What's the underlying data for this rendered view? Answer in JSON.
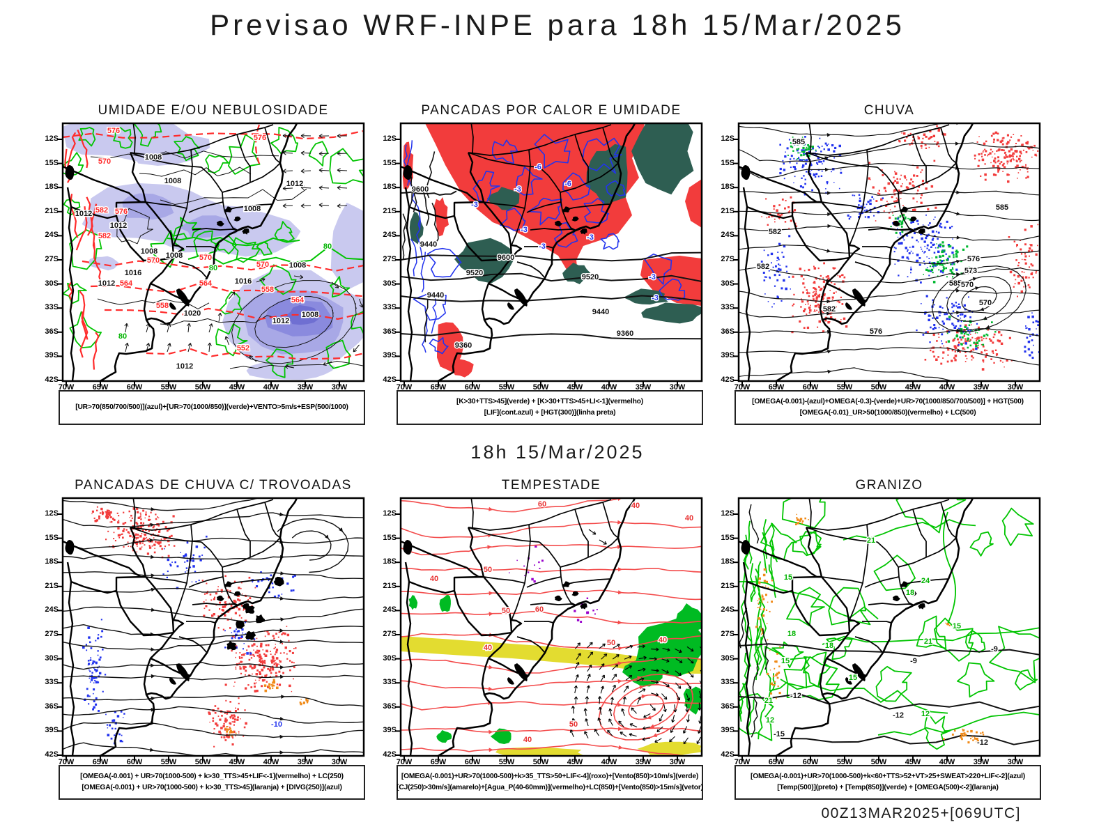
{
  "page": {
    "title": "Previsao WRF-INPE  para 18h 15/Mar/2025",
    "subtitle": "18h 15/Mar/2025",
    "footer": "00Z13MAR2025+[069UTC]"
  },
  "axes": {
    "lat": [
      "12S",
      "15S",
      "18S",
      "21S",
      "24S",
      "27S",
      "30S",
      "33S",
      "36S",
      "39S",
      "42S"
    ],
    "lon": [
      "70W",
      "65W",
      "60W",
      "55W",
      "50W",
      "45W",
      "40W",
      "35W",
      "30W"
    ]
  },
  "colors": {
    "red_fill": "#f23c3c",
    "red_line": "#ff2b2b",
    "salmon_line": "#f34b4b",
    "teal": "#2e5e52",
    "green": "#00c400",
    "green_fill": "#00bb22",
    "blue": "#2233ee",
    "lavender": "#c9c9ef",
    "lavender_mid": "#a8a8e6",
    "lavender_deep": "#8a8ade",
    "lavender_core": "#6f6fd2",
    "yellow": "#e3dc30",
    "orange": "#f08a18",
    "purple": "#9900cc",
    "black": "#000000"
  },
  "panels": [
    {
      "id": "umidade",
      "style": "umidade",
      "title": "UMIDADE E/OU NEBULOSIDADE",
      "legend": [
        "[UR>70(850/700/500)](azul)+[UR>70(1000/850)](verde)+VENTO>5m/s+ESP(500/1000)"
      ],
      "labels": [
        [
          "1008",
          "#111",
          130,
          52
        ],
        [
          "1008",
          "#111",
          158,
          86
        ],
        [
          "1012",
          "#111",
          333,
          90
        ],
        [
          "1008",
          "#111",
          272,
          126
        ],
        [
          "1012",
          "#111",
          80,
          150
        ],
        [
          "1008",
          "#111",
          124,
          187
        ],
        [
          "1008",
          "#111",
          160,
          193
        ],
        [
          "1016",
          "#111",
          101,
          218
        ],
        [
          "1012",
          "#111",
          63,
          233
        ],
        [
          "1016",
          "#111",
          259,
          230
        ],
        [
          "1020",
          "#111",
          186,
          276
        ],
        [
          "1008",
          "#111",
          337,
          207
        ],
        [
          "1012",
          "#111",
          313,
          287
        ],
        [
          "1008",
          "#111",
          355,
          278
        ],
        [
          "1012",
          "#111",
          30,
          133
        ],
        [
          "1012",
          "#111",
          175,
          352
        ],
        [
          "576",
          "#ff2b2b",
          73,
          14
        ],
        [
          "576",
          "#ff2b2b",
          283,
          24
        ],
        [
          "570",
          "#ff2b2b",
          60,
          58
        ],
        [
          "582",
          "#ff2b2b",
          56,
          128
        ],
        [
          "576",
          "#ff2b2b",
          84,
          130
        ],
        [
          "582",
          "#ff2b2b",
          60,
          165
        ],
        [
          "570",
          "#ff2b2b",
          130,
          200
        ],
        [
          "570",
          "#ff2b2b",
          205,
          196
        ],
        [
          "570",
          "#ff2b2b",
          287,
          206
        ],
        [
          "564",
          "#ff2b2b",
          91,
          233
        ],
        [
          "564",
          "#ff2b2b",
          205,
          233
        ],
        [
          "564",
          "#ff2b2b",
          337,
          257
        ],
        [
          "558",
          "#ff2b2b",
          143,
          265
        ],
        [
          "558",
          "#ff2b2b",
          294,
          242
        ],
        [
          "552",
          "#ff2b2b",
          259,
          326
        ],
        [
          "80",
          "#00b400",
          216,
          211
        ],
        [
          "80",
          "#00b400",
          86,
          309
        ],
        [
          "80",
          "#00b400",
          380,
          180
        ]
      ]
    },
    {
      "id": "pancadas-calor",
      "style": "pancadas",
      "title": "PANCADAS POR CALOR E UMIDADE",
      "legend": [
        "[K>30+TTS>45](verde) + [K>30+TTS>45+LI<-1](vermelho)",
        "[LIF](cont.azul) + [HGT(300)](linha preta)"
      ],
      "labels": [
        [
          "9600",
          "#111",
          28,
          98
        ],
        [
          "9440",
          "#111",
          40,
          177
        ],
        [
          "9600",
          "#111",
          151,
          196
        ],
        [
          "9520",
          "#111",
          106,
          218
        ],
        [
          "9520",
          "#111",
          272,
          224
        ],
        [
          "9440",
          "#111",
          50,
          250
        ],
        [
          "9440",
          "#111",
          287,
          274
        ],
        [
          "9360",
          "#111",
          90,
          322
        ],
        [
          "9360",
          "#111",
          322,
          305
        ],
        [
          "-6",
          "#2233ee",
          197,
          66
        ],
        [
          "-3",
          "#2233ee",
          168,
          98
        ],
        [
          "-3",
          "#2233ee",
          106,
          120
        ],
        [
          "-3",
          "#2233ee",
          177,
          156
        ],
        [
          "-3",
          "#2233ee",
          203,
          180
        ],
        [
          "-3",
          "#2233ee",
          272,
          167
        ],
        [
          "-3",
          "#2233ee",
          361,
          224
        ],
        [
          "-3",
          "#2233ee",
          365,
          254
        ],
        [
          "-6",
          "#2233ee",
          240,
          90
        ]
      ]
    },
    {
      "id": "chuva",
      "style": "chuva",
      "title": "CHUVA",
      "legend": [
        "[OMEGA(-0.001)-(azul)+OMEGA(-0.3)-(verde)+UR>70(1000/850/700/500)] + HGT(500)",
        "[OMEGA(-0.01)_UR>50(1000/850)(vermelho) + LC(500)"
      ],
      "labels": [
        [
          "585",
          "#111",
          86,
          30
        ],
        [
          "585",
          "#111",
          378,
          124
        ],
        [
          "585",
          "#111",
          311,
          233
        ],
        [
          "582",
          "#111",
          52,
          159
        ],
        [
          "582",
          "#111",
          35,
          209
        ],
        [
          "582",
          "#111",
          130,
          270
        ],
        [
          "576",
          "#111",
          337,
          198
        ],
        [
          "573",
          "#111",
          333,
          215
        ],
        [
          "570",
          "#111",
          328,
          235
        ],
        [
          "576",
          "#111",
          197,
          302
        ],
        [
          "570",
          "#111",
          354,
          261
        ]
      ]
    },
    {
      "id": "trovoadas",
      "style": "trovoadas",
      "title": "PANCADAS DE CHUVA C/ TROVOADAS",
      "legend": [
        "[OMEGA(-0.001) + UR>70(1000-500) + k>30_TTS>45+LIF<-1](vermelho) + LC(250)",
        "[OMEGA(-0.001) + UR>70(1000-500) + k>30_TTS>45](laranja) + [DIVG(250)](azul)"
      ],
      "labels": [
        [
          "-10",
          "#2233ee",
          307,
          328
        ]
      ]
    },
    {
      "id": "tempestade",
      "style": "tempestade",
      "title": "TEMPESTADE",
      "legend": [
        "[OMEGA(-0.001)+UR>70(1000-500)+k>35_TTS>50+LIF<-4](roxo)+[Vento(850)>10m/s](verde)",
        "[CJ(250)>30m/s](amarelo)+[Agua_P(40-60mm)](vermelho)+LC(850)+[Vento(850)>15m/s](vetor)"
      ],
      "labels": [
        [
          "60",
          "#e83030",
          203,
          12
        ],
        [
          "40",
          "#e83030",
          337,
          14
        ],
        [
          "40",
          "#e83030",
          414,
          32
        ],
        [
          "50",
          "#e83030",
          125,
          106
        ],
        [
          "40",
          "#e83030",
          48,
          119
        ],
        [
          "50",
          "#e83030",
          151,
          165
        ],
        [
          "60",
          "#e83030",
          199,
          163
        ],
        [
          "40",
          "#e83030",
          125,
          218
        ],
        [
          "50",
          "#e83030",
          302,
          211
        ],
        [
          "40",
          "#e83030",
          376,
          207
        ],
        [
          "50",
          "#e83030",
          248,
          328
        ],
        [
          "40",
          "#e83030",
          182,
          350
        ]
      ]
    },
    {
      "id": "granizo",
      "style": "granizo",
      "title": "GRANIZO",
      "legend": [
        "[OMEGA(-0.001)+UR>70(1000-500)+k<60+TTS>52+VT>25+SWEAT>220+LIF<-2](azul)",
        "[Temp(500)](preto) + [Temp(850)](verde) + [OMEGA(500)<-2](laranja)"
      ],
      "labels": [
        [
          "21",
          "#00b400",
          190,
          64
        ],
        [
          "24",
          "#00b400",
          268,
          122
        ],
        [
          "15",
          "#00b400",
          71,
          117
        ],
        [
          "18",
          "#00b400",
          76,
          198
        ],
        [
          "21",
          "#00b400",
          272,
          209
        ],
        [
          "15",
          "#00b400",
          313,
          187
        ],
        [
          "18",
          "#00b400",
          130,
          215
        ],
        [
          "15",
          "#00b400",
          67,
          237
        ],
        [
          "15",
          "#00b400",
          164,
          261
        ],
        [
          "12",
          "#00b400",
          268,
          313
        ],
        [
          "21",
          "#00b400",
          43,
          294
        ],
        [
          "12",
          "#00b400",
          45,
          322
        ],
        [
          "18",
          "#00b400",
          246,
          139
        ],
        [
          "-12",
          "#111",
          82,
          287
        ],
        [
          "-9",
          "#111",
          251,
          237
        ],
        [
          "-9",
          "#111",
          367,
          220
        ],
        [
          "-12",
          "#111",
          229,
          315
        ],
        [
          "-15",
          "#111",
          58,
          342
        ],
        [
          "-12",
          "#111",
          350,
          354
        ]
      ]
    }
  ]
}
